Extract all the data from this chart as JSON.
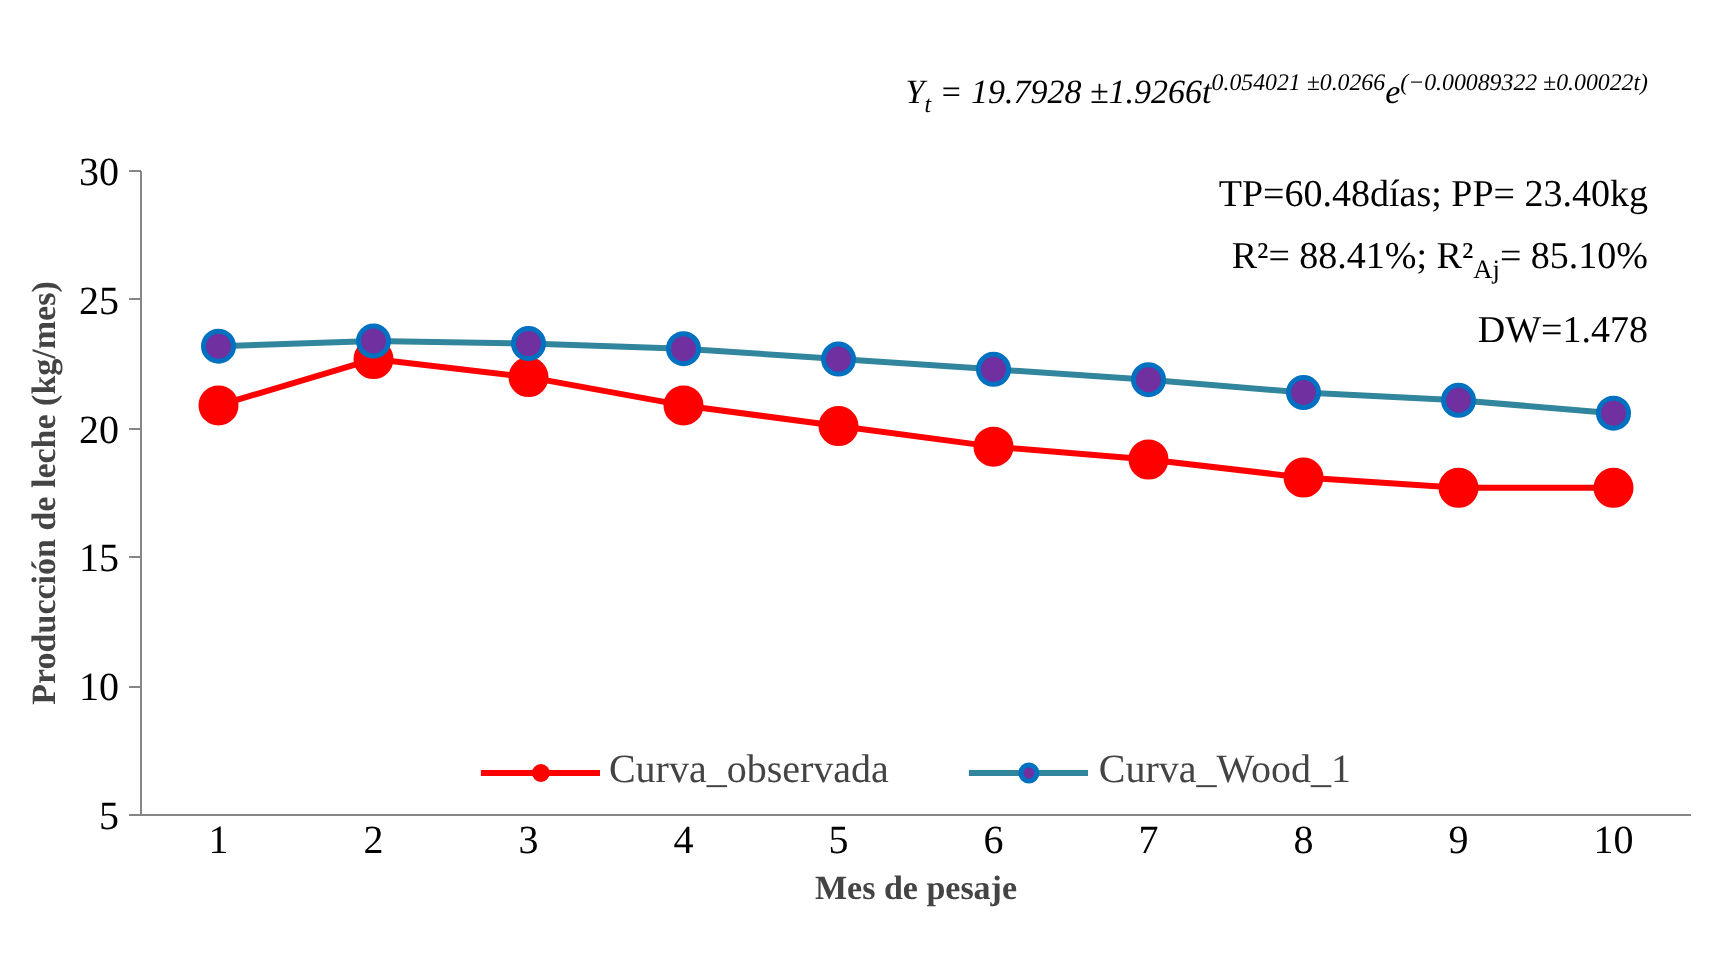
{
  "chart_data": {
    "type": "line",
    "xlabel": "Mes de pesaje",
    "ylabel": "Producción de leche (kg/mes)",
    "categories": [
      "1",
      "2",
      "3",
      "4",
      "5",
      "6",
      "7",
      "8",
      "9",
      "10"
    ],
    "ylim": [
      5,
      30
    ],
    "yticks": [
      5,
      10,
      15,
      20,
      25,
      30
    ],
    "grid": false,
    "legend": "bottom",
    "marker": "circle",
    "line_style": "solid",
    "series": [
      {
        "name": "Curva_observada",
        "color": "#ff0000",
        "values": [
          20.9,
          22.7,
          22.0,
          20.9,
          20.1,
          19.3,
          18.8,
          18.1,
          17.7,
          17.7
        ]
      },
      {
        "name": "Curva_Wood_1",
        "color": "#31859c",
        "values": [
          23.2,
          23.4,
          23.3,
          23.1,
          22.7,
          22.3,
          21.9,
          21.4,
          21.1,
          20.6
        ]
      }
    ],
    "annotations": [
      "Y$_{t}$ = 19.7928 ±1.9266t$^{0.054021 ±0.0266}$e$^{(−0.00089322 ±0.00022t)}$",
      "TP=60.48días; PP= 23.40kg",
      "R²= 88.41%; R²$_{Aj}$= 85.10%",
      "DW=1.478"
    ]
  }
}
